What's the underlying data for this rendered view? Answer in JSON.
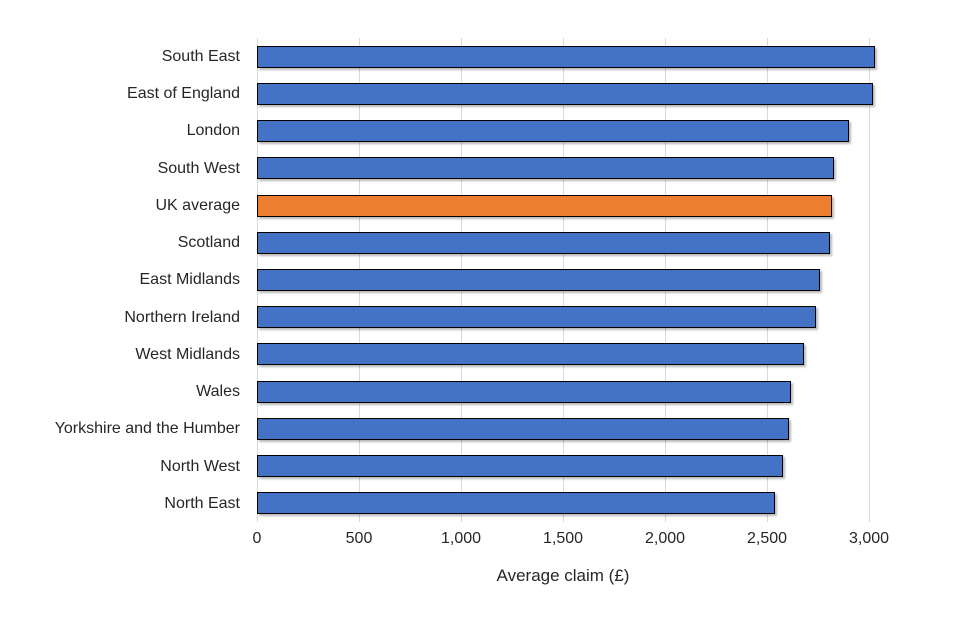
{
  "chart_data": {
    "type": "bar",
    "orientation": "horizontal",
    "title": "",
    "xlabel": "Average claim (£)",
    "ylabel": "",
    "categories": [
      "South East",
      "East of England",
      "London",
      "South West",
      "UK average",
      "Scotland",
      "East Midlands",
      "Northern Ireland",
      "West Midlands",
      "Wales",
      "Yorkshire and the Humber",
      "North West",
      "North East"
    ],
    "values": [
      3030,
      3020,
      2900,
      2830,
      2820,
      2810,
      2760,
      2740,
      2680,
      2620,
      2610,
      2580,
      2540
    ],
    "highlight_category": "UK average",
    "x_tick_labels": [
      "0",
      "500",
      "1,000",
      "1,500",
      "2,000",
      "2,500",
      "3,000"
    ],
    "x_tick_values": [
      0,
      500,
      1000,
      1500,
      2000,
      2500,
      3000
    ],
    "xlim": [
      0,
      3000
    ],
    "grid": true,
    "legend": "none",
    "colors": {
      "bar": "#4472C4",
      "highlight": "#ED7D31",
      "bar_border": "#000000",
      "gridline": "#D9D9D9",
      "text": "#262626",
      "background": "#FFFFFF"
    }
  }
}
